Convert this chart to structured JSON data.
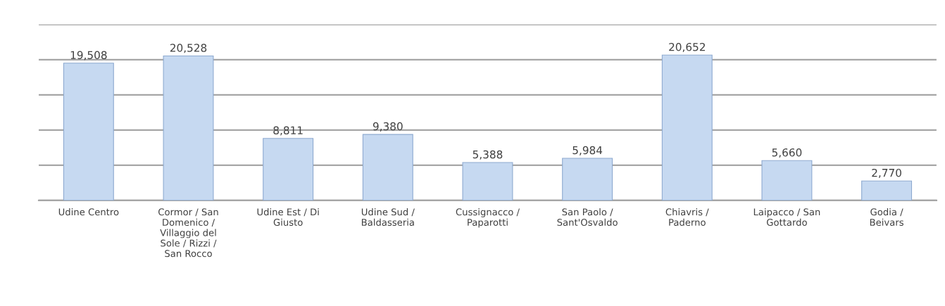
{
  "chart_data": {
    "type": "bar",
    "categories": [
      "Udine Centro",
      "Cormor / San Domenico / Villaggio del Sole / Rizzi / San Rocco",
      "Udine Est / Di Giusto",
      "Udine Sud / Baldasseria",
      "Cussignacco / Paparotti",
      "San Paolo / Sant'Osvaldo",
      "Chiavris / Paderno",
      "Laipacco / San Gottardo",
      "Godia / Beivars"
    ],
    "values": [
      19508,
      20528,
      8811,
      9380,
      5388,
      5984,
      20652,
      5660,
      2770
    ],
    "value_labels": [
      "19,508",
      "20,528",
      "8,811",
      "9,380",
      "5,388",
      "5,984",
      "20,652",
      "5,660",
      "2,770"
    ],
    "color": "#c6d9f1",
    "ylim": [
      0,
      25000
    ],
    "yticks": [
      {
        "value": 0,
        "label": null
      },
      {
        "value": 5000,
        "label": null
      },
      {
        "value": 10000,
        "label": null
      },
      {
        "value": 15000,
        "label": null
      },
      {
        "value": 20000,
        "label": null
      },
      {
        "value": 25000,
        "label": null
      }
    ],
    "grid": "y",
    "tick_labels": "x"
  }
}
